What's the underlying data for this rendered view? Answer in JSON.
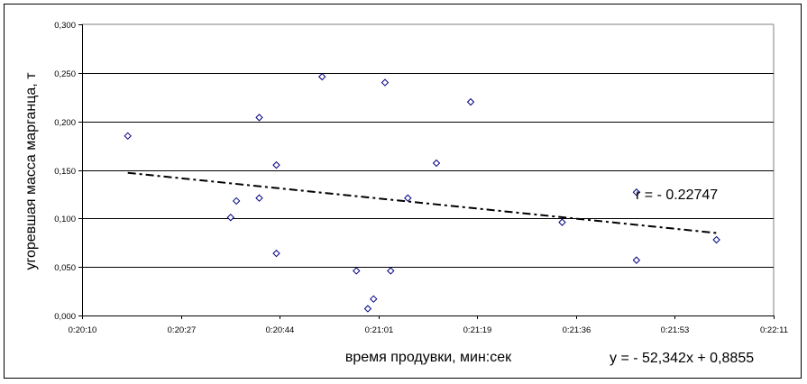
{
  "chart_data": {
    "type": "scatter",
    "xlabel": "время продувки, мин:сек",
    "ylabel": "угоревшая масса марганца, т",
    "xlim": [
      "0:20:10",
      "0:22:11"
    ],
    "ylim": [
      0,
      0.3
    ],
    "x_ticks": [
      "0:20:10",
      "0:20:27",
      "0:20:44",
      "0:21:01",
      "0:21:19",
      "0:21:36",
      "0:21:53",
      "0:22:11"
    ],
    "y_ticks": [
      "0,000",
      "0,050",
      "0,100",
      "0,150",
      "0,200",
      "0,250",
      "0,300"
    ],
    "y_tick_values": [
      0,
      0.05,
      0.1,
      0.15,
      0.2,
      0.25,
      0.3
    ],
    "grid": "horizontal",
    "marker": "diamond",
    "marker_color": "#000080",
    "points": [
      {
        "x": "0:20:18",
        "y": 0.185
      },
      {
        "x": "0:20:36",
        "y": 0.101
      },
      {
        "x": "0:20:37",
        "y": 0.118
      },
      {
        "x": "0:20:41",
        "y": 0.204
      },
      {
        "x": "0:20:41",
        "y": 0.121
      },
      {
        "x": "0:20:44",
        "y": 0.155
      },
      {
        "x": "0:20:44",
        "y": 0.064
      },
      {
        "x": "0:20:52",
        "y": 0.246
      },
      {
        "x": "0:20:58",
        "y": 0.046
      },
      {
        "x": "0:21:00",
        "y": 0.007
      },
      {
        "x": "0:21:01",
        "y": 0.017
      },
      {
        "x": "0:21:03",
        "y": 0.24
      },
      {
        "x": "0:21:04",
        "y": 0.046
      },
      {
        "x": "0:21:07",
        "y": 0.121
      },
      {
        "x": "0:21:12",
        "y": 0.157
      },
      {
        "x": "0:21:18",
        "y": 0.22
      },
      {
        "x": "0:21:34",
        "y": 0.096
      },
      {
        "x": "0:21:47",
        "y": 0.127
      },
      {
        "x": "0:21:47",
        "y": 0.057
      },
      {
        "x": "0:22:01",
        "y": 0.078
      }
    ],
    "trendline": {
      "type": "linear",
      "style": "dash-dot",
      "from": {
        "x": "0:20:18",
        "y": 0.147
      },
      "to": {
        "x": "0:22:01",
        "y": 0.085
      }
    },
    "annotations": {
      "r": "r = - 0.22747",
      "equation": "y = - 52,342x + 0,8855"
    }
  }
}
